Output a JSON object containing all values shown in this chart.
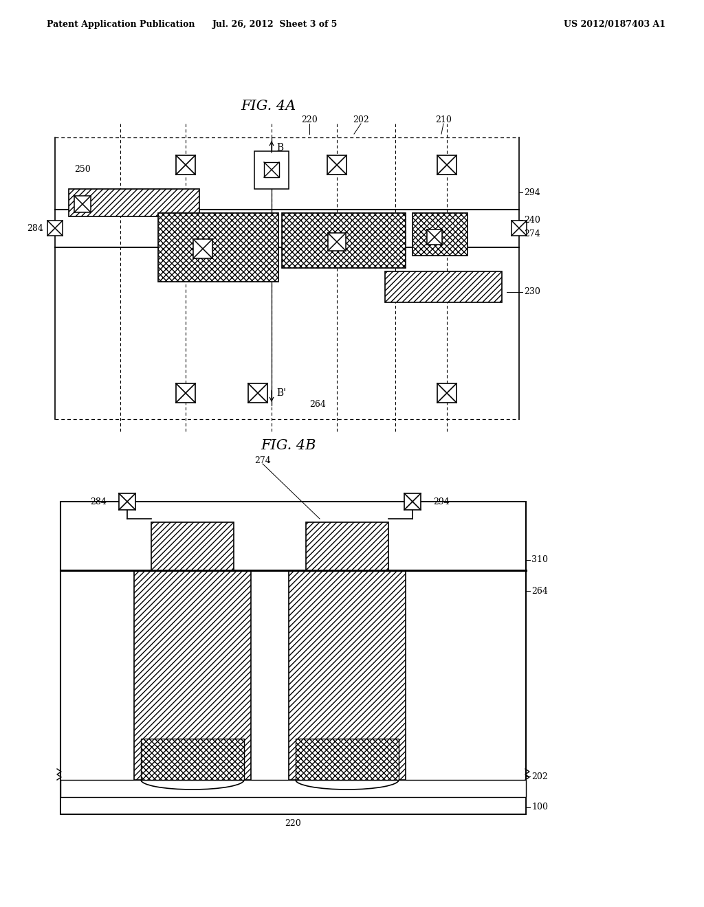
{
  "header_left": "Patent Application Publication",
  "header_mid": "Jul. 26, 2012  Sheet 3 of 5",
  "header_right": "US 2012/0187403 A1",
  "fig4a_title": "FIG. 4A",
  "fig4b_title": "FIG. 4B",
  "bg_color": "#ffffff"
}
